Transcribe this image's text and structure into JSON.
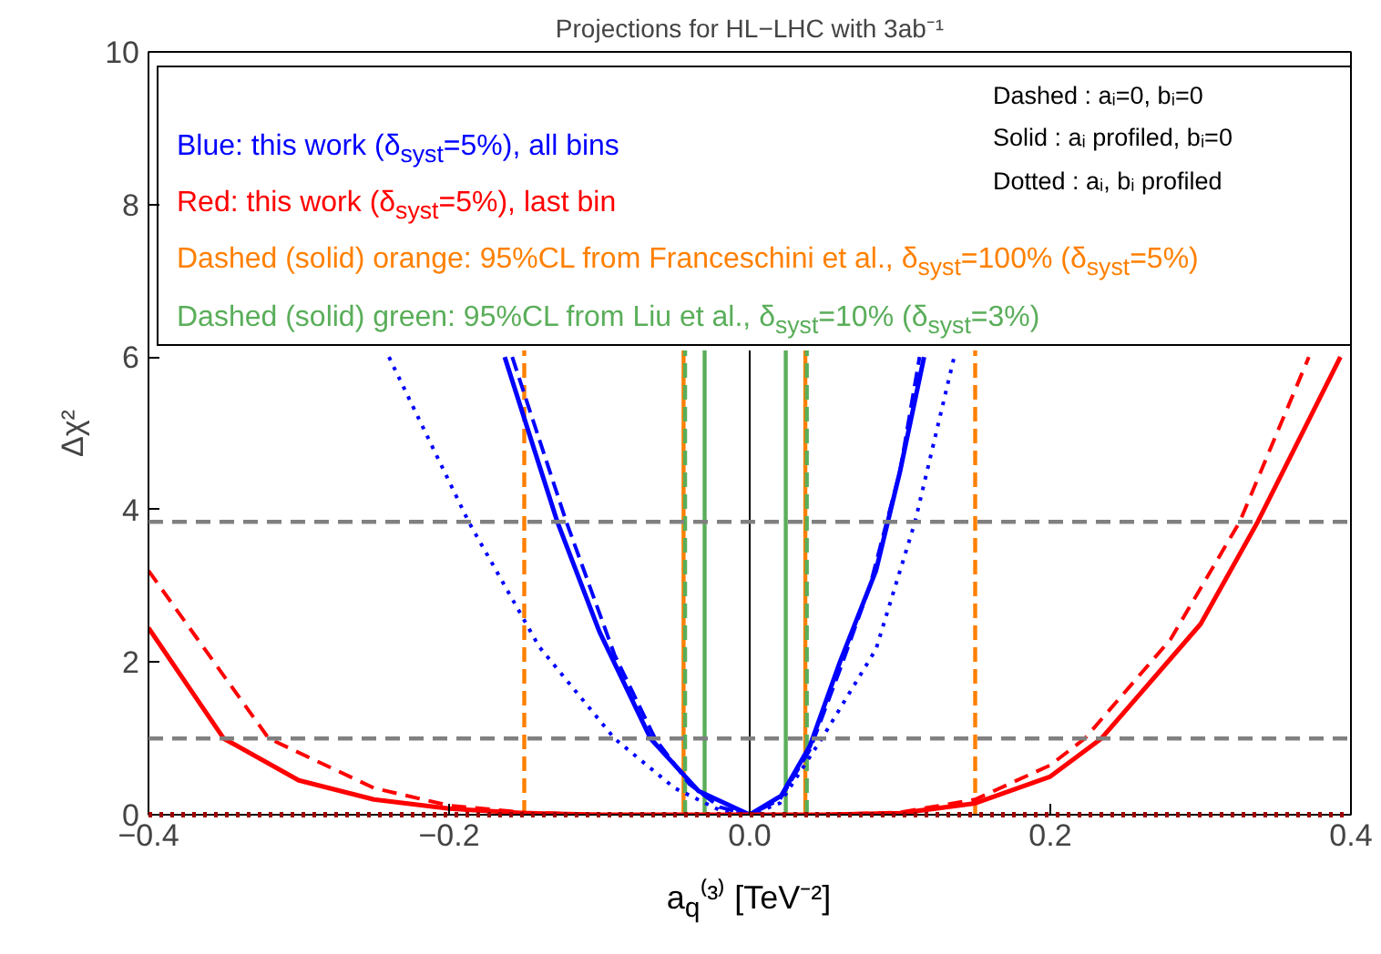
{
  "chart_data": {
    "type": "line",
    "title": "Projections for HL−LHC with 3ab⁻¹",
    "xlabel": "a$_{q}$⁽³⁾ [TeV⁻²]",
    "ylabel": "Δχ²",
    "xlim": [
      -0.4,
      0.4
    ],
    "ylim": [
      0,
      10
    ],
    "xticks": [
      {
        "value": -0.4,
        "label": "−0.4"
      },
      {
        "value": -0.2,
        "label": "−0.2"
      },
      {
        "value": 0,
        "label": "0.0"
      },
      0.2,
      0.4
    ],
    "yticks": [
      0,
      2,
      4,
      6,
      8,
      10
    ],
    "series": [
      {
        "color": "#0000ff",
        "line_style": "solid",
        "x": [
          -0.163,
          -0.128,
          -0.1,
          -0.066,
          -0.034,
          0,
          0.021,
          0.04,
          0.06,
          0.084,
          0.1,
          0.116
        ],
        "values": [
          6,
          3.84,
          2.4,
          1,
          0.31,
          0,
          0.25,
          0.9,
          2.0,
          3.2,
          4.5,
          6
        ]
      },
      {
        "color": "#0000ff",
        "line_style": "dashed",
        "x": [
          -0.158,
          -0.122,
          -0.09,
          -0.063,
          -0.04,
          -0.02,
          0,
          0.02,
          0.04,
          0.06,
          0.08,
          0.1,
          0.113
        ],
        "values": [
          6,
          3.84,
          2.1,
          1,
          0.4,
          0.1,
          0,
          0.2,
          0.85,
          1.9,
          3.0,
          4.5,
          6
        ]
      },
      {
        "color": "#0000ff",
        "line_style": "dotted",
        "x": [
          -0.24,
          -0.187,
          -0.14,
          -0.09,
          -0.05,
          -0.02,
          0,
          0.02,
          0.048,
          0.084,
          0.11,
          0.136
        ],
        "values": [
          6,
          3.84,
          2.2,
          1,
          0.35,
          0.06,
          0,
          0.15,
          1,
          2.17,
          3.84,
          6
        ]
      },
      {
        "color": "#ff0000",
        "line_style": "solid",
        "x": [
          -0.4,
          -0.35,
          -0.3,
          -0.25,
          -0.2,
          -0.15,
          -0.1,
          -0.05,
          0,
          0.05,
          0.1,
          0.15,
          0.2,
          0.234,
          0.3,
          0.338,
          0.393
        ],
        "values": [
          2.45,
          1,
          0.45,
          0.2,
          0.08,
          0.02,
          0,
          0,
          0,
          0,
          0.02,
          0.15,
          0.5,
          1,
          2.5,
          3.84,
          6
        ]
      },
      {
        "color": "#ff0000",
        "line_style": "dashed",
        "x": [
          -0.4,
          -0.32,
          -0.25,
          -0.2,
          -0.15,
          -0.1,
          -0.05,
          0,
          0.05,
          0.1,
          0.15,
          0.2,
          0.223,
          0.28,
          0.326,
          0.372
        ],
        "values": [
          3.2,
          1,
          0.35,
          0.12,
          0.03,
          0,
          0,
          0,
          0,
          0.03,
          0.2,
          0.65,
          1,
          2.3,
          3.84,
          6
        ]
      },
      {
        "color": "#a00000",
        "line_style": "dotted",
        "x": [
          -0.4,
          0.4
        ],
        "values": [
          0,
          0
        ]
      }
    ],
    "ref_lines": [
      {
        "axis": "y",
        "value": 1,
        "color": "#808080",
        "line_style": "dashed"
      },
      {
        "axis": "y",
        "value": 3.84,
        "color": "#808080",
        "line_style": "dashed"
      },
      {
        "axis": "x",
        "value": 0,
        "color": "#000000",
        "line_style": "solid"
      },
      {
        "axis": "x",
        "value": -0.15,
        "color": "#ff8000",
        "line_style": "dashed"
      },
      {
        "axis": "x",
        "value": 0.15,
        "color": "#ff8000",
        "line_style": "dashed"
      },
      {
        "axis": "x",
        "value": -0.044,
        "color": "#ff8000",
        "line_style": "solid"
      },
      {
        "axis": "x",
        "value": 0.037,
        "color": "#ff8000",
        "line_style": "solid"
      },
      {
        "axis": "x",
        "value": -0.043,
        "color": "#5aae5a",
        "line_style": "dashed"
      },
      {
        "axis": "x",
        "value": 0.038,
        "color": "#5aae5a",
        "line_style": "dashed"
      },
      {
        "axis": "x",
        "value": -0.03,
        "color": "#5aae5a",
        "line_style": "solid"
      },
      {
        "axis": "x",
        "value": 0.024,
        "color": "#5aae5a",
        "line_style": "solid"
      }
    ],
    "annotations": [
      "Blue: this work (δ$_{syst}$=5%), all bins",
      "Red: this work (δ$_{syst}$=5%), last bin",
      "Dashed (solid) orange: 95%CL from Franceschini et al., δ$_{syst}$=100% (δ$_{syst}$=5%)",
      "Dashed (solid) green: 95%CL from Liu et al., δ$_{syst}$=10% (δ$_{syst}$=3%)",
      "Dashed : aᵢ=0, bᵢ=0",
      "Solid : aᵢ profiled, bᵢ=0",
      "Dotted : aᵢ, bᵢ profiled"
    ]
  }
}
